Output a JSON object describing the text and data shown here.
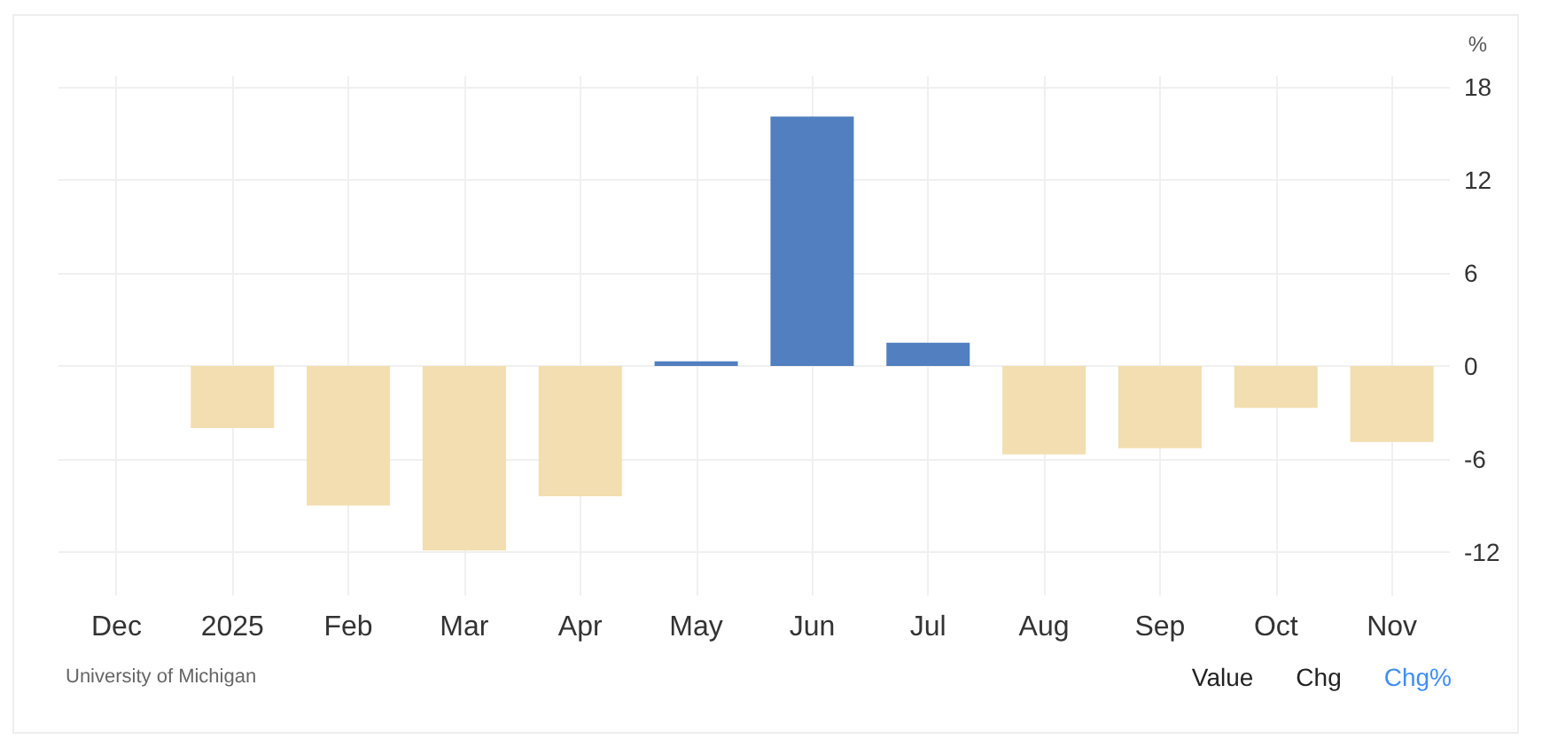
{
  "chart_data": {
    "type": "bar",
    "ylabel": "%",
    "categories": [
      "Dec",
      "2025",
      "Feb",
      "Mar",
      "Apr",
      "May",
      "Jun",
      "Jul",
      "Aug",
      "Sep",
      "Oct",
      "Nov"
    ],
    "values": [
      null,
      -4.0,
      -9.0,
      -11.9,
      -8.4,
      0.3,
      16.1,
      1.5,
      -5.7,
      -5.3,
      -2.7,
      -4.9
    ],
    "colors": [
      "#f2deb0",
      "#f2deb0",
      "#f2deb0",
      "#f2deb0",
      "#f2deb0",
      "#517fc0",
      "#517fc0",
      "#517fc0",
      "#f2deb0",
      "#f2deb0",
      "#f2deb0",
      "#f2deb0"
    ],
    "ylim": [
      -14.8,
      18.7
    ],
    "yticks": [
      -12,
      -6,
      0,
      6,
      12,
      18
    ],
    "grid": true,
    "annotations": [
      "University of Michigan",
      "Value",
      "Chg",
      "Chg%"
    ]
  }
}
